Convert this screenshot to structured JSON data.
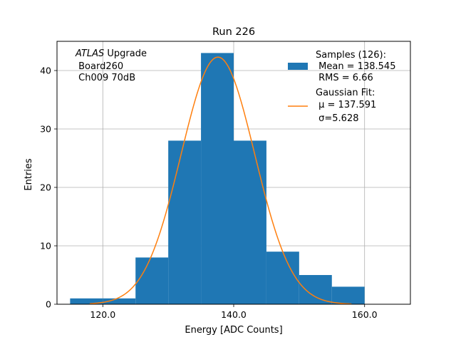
{
  "chart_data": {
    "type": "bar",
    "title": "Run 226",
    "xlabel": "Energy [ADC Counts]",
    "ylabel": "Entries",
    "xlim": [
      113,
      167
    ],
    "ylim": [
      0,
      45
    ],
    "grid": true,
    "x_ticks": [
      {
        "value": 120,
        "label": "120.0"
      },
      {
        "value": 140,
        "label": "140.0"
      },
      {
        "value": 160,
        "label": "160.0"
      }
    ],
    "y_ticks": [
      {
        "value": 0,
        "label": "0"
      },
      {
        "value": 10,
        "label": "10"
      },
      {
        "value": 20,
        "label": "20"
      },
      {
        "value": 30,
        "label": "30"
      },
      {
        "value": 40,
        "label": "40"
      }
    ],
    "histogram": {
      "bins": [
        115,
        120,
        125,
        130,
        135,
        140,
        145,
        150,
        155,
        160
      ],
      "counts": [
        1,
        1,
        8,
        28,
        43,
        28,
        9,
        5,
        3
      ],
      "color": "#1f77b4"
    },
    "fit": {
      "type": "gaussian",
      "mu": 137.591,
      "sigma": 5.628,
      "amplitude": 42.3,
      "x_range": [
        118,
        158
      ],
      "color": "#ff7f0e"
    },
    "annotation": {
      "italic": "ATLAS",
      "line1_rest": " Upgrade",
      "line2": " Board260",
      "line3": " Ch009 70dB"
    },
    "legend": {
      "location": "top-right",
      "samples_label": [
        "Samples (126):",
        " Mean = 138.545",
        " RMS = 6.66"
      ],
      "fit_label": [
        "Gaussian Fit:",
        " μ = 137.591",
        " σ=5.628"
      ]
    }
  }
}
